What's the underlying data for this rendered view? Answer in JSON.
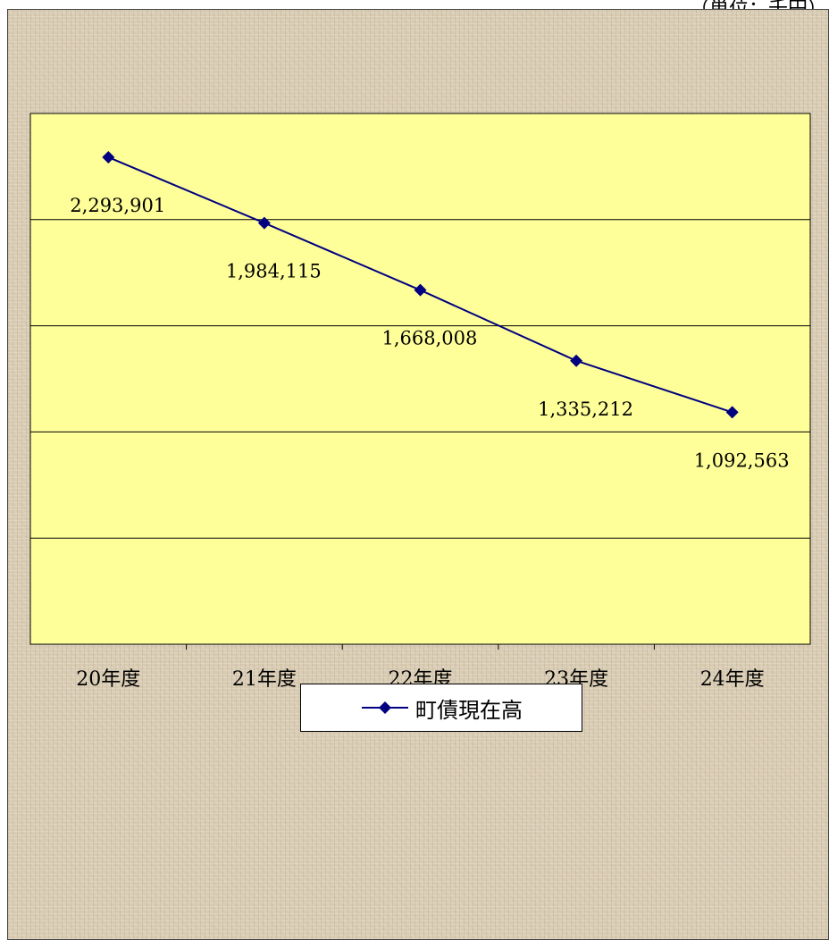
{
  "unit_note": "（単位：千円）",
  "colors": {
    "plot_bg": "#ffff99",
    "line": "#000080",
    "border": "#000000",
    "gridline": "#000000"
  },
  "chart_data": {
    "type": "line",
    "categories": [
      "20年度",
      "21年度",
      "22年度",
      "23年度",
      "24年度"
    ],
    "series": [
      {
        "name": "町債現在高",
        "values": [
          2293901,
          1984115,
          1668008,
          1335212,
          1092563
        ],
        "marker": "diamond"
      }
    ],
    "data_labels": [
      "2,293,901",
      "1,984,115",
      "1,668,008",
      "1,335,212",
      "1,092,563"
    ],
    "ylim": [
      0,
      2500000
    ],
    "gridlines": true,
    "title": "",
    "xlabel": "",
    "ylabel": "",
    "legend": "bottom"
  }
}
